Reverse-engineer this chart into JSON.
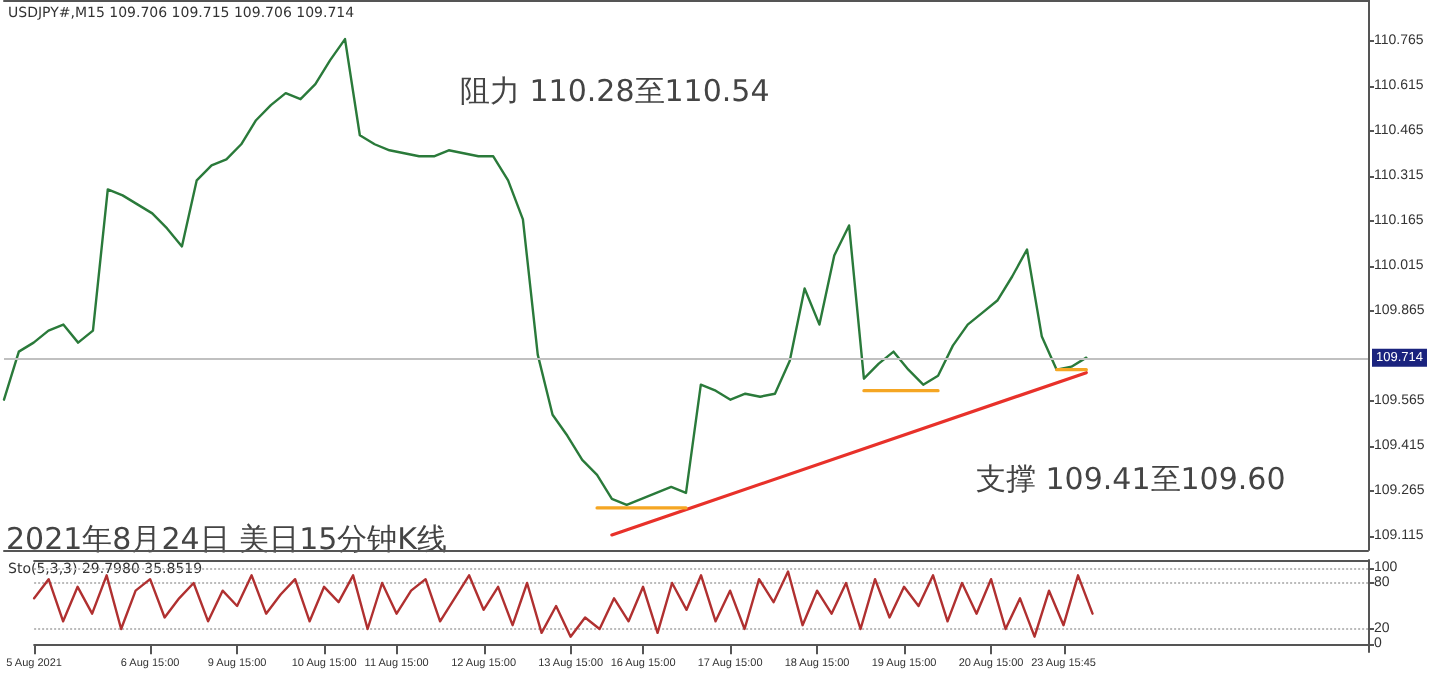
{
  "chart_data": [
    {
      "type": "line",
      "title": "USDJPY#,M15 109.706 109.715 109.706 109.714",
      "categories": [
        null,
        null,
        null,
        null,
        null,
        null,
        null,
        null,
        null,
        null,
        null,
        null,
        null,
        null,
        null,
        null,
        null,
        null,
        null,
        null,
        null,
        null,
        null,
        null,
        null,
        null,
        null,
        null,
        null,
        null,
        null,
        null,
        null,
        null,
        null,
        null,
        null,
        null,
        null,
        null,
        null,
        null,
        null,
        null,
        null,
        null,
        null,
        null,
        null,
        null,
        null,
        null,
        null,
        null,
        null,
        null,
        null,
        null,
        null,
        null,
        null,
        null,
        null,
        null,
        null,
        null,
        null,
        null,
        null,
        null,
        null,
        null,
        null,
        null
      ],
      "series": [
        {
          "color": "#2a7a3a",
          "values": [
            109.57,
            109.73,
            109.76,
            109.8,
            109.82,
            109.76,
            109.8,
            110.27,
            110.25,
            110.22,
            110.19,
            110.14,
            110.08,
            110.3,
            110.35,
            110.37,
            110.42,
            110.5,
            110.55,
            110.59,
            110.57,
            110.62,
            110.7,
            110.77,
            110.45,
            110.42,
            110.4,
            110.39,
            110.38,
            110.38,
            110.4,
            110.39,
            110.38,
            110.38,
            110.3,
            110.17,
            109.72,
            109.52,
            109.45,
            109.37,
            109.32,
            109.24,
            109.22,
            109.24,
            109.26,
            109.28,
            109.26,
            109.62,
            109.6,
            109.57,
            109.59,
            109.58,
            109.59,
            109.7,
            109.94,
            109.82,
            110.05,
            110.15,
            109.64,
            109.69,
            109.73,
            109.67,
            109.62,
            109.65,
            109.75,
            109.82,
            109.86,
            109.9,
            109.98,
            110.07,
            109.78,
            109.67,
            109.68,
            109.71
          ]
        },
        {
          "color": "#e8312a",
          "values": [
            null,
            null,
            null,
            null,
            null,
            null,
            null,
            null,
            null,
            null,
            null,
            null,
            null,
            null,
            null,
            null,
            null,
            null,
            null,
            null,
            null,
            null,
            null,
            null,
            null,
            null,
            null,
            null,
            null,
            null,
            null,
            null,
            null,
            null,
            null,
            null,
            null,
            null,
            null,
            null,
            null,
            109.12,
            null,
            null,
            null,
            null,
            null,
            null,
            null,
            null,
            null,
            null,
            null,
            null,
            null,
            null,
            null,
            null,
            null,
            null,
            null,
            null,
            null,
            null,
            null,
            null,
            null,
            null,
            null,
            null,
            null,
            null,
            null,
            109.66
          ]
        },
        {
          "color": "#f5a623",
          "values": [
            null,
            null,
            null,
            null,
            null,
            null,
            null,
            null,
            null,
            null,
            null,
            null,
            null,
            null,
            null,
            null,
            null,
            null,
            null,
            null,
            null,
            null,
            null,
            null,
            null,
            null,
            null,
            null,
            null,
            null,
            null,
            null,
            null,
            null,
            null,
            null,
            null,
            null,
            null,
            null,
            109.21,
            null,
            null,
            null,
            null,
            null,
            109.21,
            null,
            null,
            null,
            null,
            null,
            null,
            null,
            null,
            null,
            null,
            null,
            null,
            null,
            null,
            null,
            null,
            null,
            null,
            null,
            null,
            null,
            null,
            null,
            null,
            null,
            null,
            null
          ]
        },
        {
          "color": "#f5a623",
          "values": [
            null,
            null,
            null,
            null,
            null,
            null,
            null,
            null,
            null,
            null,
            null,
            null,
            null,
            null,
            null,
            null,
            null,
            null,
            null,
            null,
            null,
            null,
            null,
            null,
            null,
            null,
            null,
            null,
            null,
            null,
            null,
            null,
            null,
            null,
            null,
            null,
            null,
            null,
            null,
            null,
            null,
            null,
            null,
            null,
            null,
            null,
            null,
            null,
            null,
            null,
            null,
            null,
            null,
            null,
            null,
            null,
            null,
            null,
            109.6,
            null,
            null,
            null,
            null,
            109.6,
            null,
            null,
            null,
            null,
            null,
            null,
            null,
            null,
            null,
            null
          ]
        },
        {
          "color": "#f5a623",
          "values": [
            null,
            null,
            null,
            null,
            null,
            null,
            null,
            null,
            null,
            null,
            null,
            null,
            null,
            null,
            null,
            null,
            null,
            null,
            null,
            null,
            null,
            null,
            null,
            null,
            null,
            null,
            null,
            null,
            null,
            null,
            null,
            null,
            null,
            null,
            null,
            null,
            null,
            null,
            null,
            null,
            null,
            null,
            null,
            null,
            null,
            null,
            null,
            null,
            null,
            null,
            null,
            null,
            null,
            null,
            null,
            null,
            null,
            null,
            null,
            null,
            null,
            null,
            null,
            null,
            null,
            null,
            null,
            null,
            null,
            null,
            null,
            109.67,
            null,
            109.67
          ]
        }
      ],
      "ylim": [
        109.07,
        110.9
      ],
      "yticks": [
        109.115,
        109.265,
        109.415,
        109.565,
        109.865,
        110.015,
        110.165,
        110.315,
        110.465,
        110.615,
        110.765
      ],
      "ref_lines": [
        {
          "axis": "y",
          "value": 109.714,
          "label": "109.714",
          "color": "#c0c0c0"
        }
      ],
      "annotations": [
        "阻力 110.28至110.54",
        "支撑 109.41至109.60",
        "2021年8月24日 美日15分钟K线"
      ],
      "tick_labels": "y",
      "grid": false,
      "marker": "none"
    },
    {
      "type": "line",
      "title": "Sto(5,3,3) 29.7980 35.8519",
      "categories": [
        "5 Aug 2021",
        null,
        null,
        null,
        null,
        null,
        null,
        null,
        "6 Aug 15:00",
        null,
        null,
        null,
        null,
        null,
        "9 Aug 15:00",
        null,
        null,
        null,
        null,
        null,
        "10 Aug 15:00",
        null,
        null,
        null,
        null,
        "11 Aug 15:00",
        null,
        null,
        null,
        null,
        null,
        "12 Aug 15:00",
        null,
        null,
        null,
        null,
        null,
        "13 Aug 15:00",
        null,
        null,
        null,
        null,
        "16 Aug 15:00",
        null,
        null,
        null,
        null,
        null,
        "17 Aug 15:00",
        null,
        null,
        null,
        null,
        null,
        "18 Aug 15:00",
        null,
        null,
        null,
        null,
        null,
        "19 Aug 15:00",
        null,
        null,
        null,
        null,
        null,
        "20 Aug 15:00",
        null,
        null,
        null,
        null,
        "23 Aug 15:45",
        null,
        null
      ],
      "series": [
        {
          "color": "#b03030",
          "values": [
            60,
            85,
            30,
            75,
            40,
            90,
            20,
            70,
            85,
            35,
            60,
            80,
            30,
            70,
            50,
            90,
            40,
            65,
            85,
            30,
            75,
            55,
            90,
            20,
            80,
            40,
            70,
            85,
            30,
            60,
            90,
            45,
            75,
            25,
            80,
            15,
            50,
            10,
            35,
            20,
            60,
            30,
            75,
            15,
            80,
            45,
            90,
            30,
            70,
            20,
            85,
            55,
            95,
            25,
            70,
            40,
            80,
            20,
            85,
            35,
            75,
            50,
            90,
            30,
            80,
            40,
            85,
            20,
            60,
            10,
            70,
            25,
            90,
            40
          ]
        }
      ],
      "ylim": [
        -10,
        110
      ],
      "yticks": [
        0,
        20,
        80,
        100
      ],
      "grid": "y",
      "marker": "none"
    }
  ]
}
